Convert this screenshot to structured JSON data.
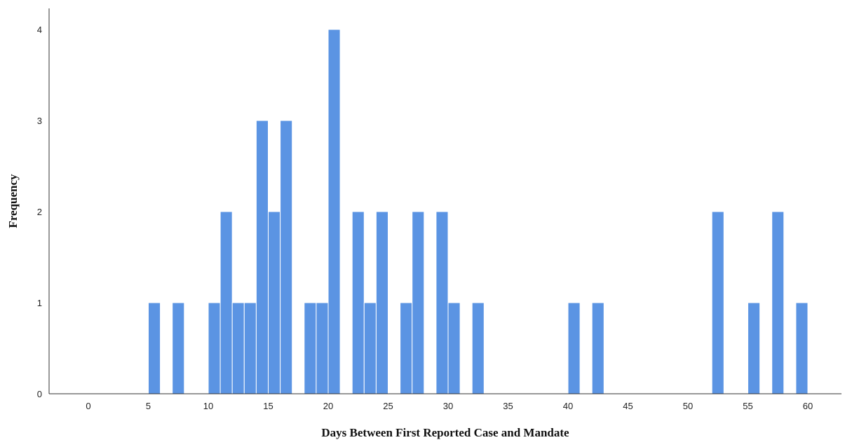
{
  "colors": {
    "bar": "#5b94e3",
    "axis": "#333333"
  },
  "chart_data": {
    "type": "bar",
    "xlabel": "Days Between First Reported Case and Mandate",
    "ylabel": "Frequency",
    "xlim": [
      -3,
      62.5
    ],
    "ylim": [
      0,
      4
    ],
    "x_ticks": [
      0,
      5,
      10,
      15,
      20,
      25,
      30,
      35,
      40,
      45,
      50,
      55,
      60
    ],
    "y_ticks": [
      0,
      1,
      2,
      3,
      4
    ],
    "bin_width": 1,
    "grid": false,
    "legend": "none",
    "bins": [
      {
        "x": 5.5,
        "count": 1
      },
      {
        "x": 7.5,
        "count": 1
      },
      {
        "x": 10.5,
        "count": 1
      },
      {
        "x": 11.5,
        "count": 2
      },
      {
        "x": 12.5,
        "count": 1
      },
      {
        "x": 13.5,
        "count": 1
      },
      {
        "x": 14.5,
        "count": 3
      },
      {
        "x": 15.5,
        "count": 2
      },
      {
        "x": 16.5,
        "count": 3
      },
      {
        "x": 18.5,
        "count": 1
      },
      {
        "x": 19.5,
        "count": 1
      },
      {
        "x": 20.5,
        "count": 4
      },
      {
        "x": 22.5,
        "count": 2
      },
      {
        "x": 23.5,
        "count": 1
      },
      {
        "x": 24.5,
        "count": 2
      },
      {
        "x": 26.5,
        "count": 1
      },
      {
        "x": 27.5,
        "count": 2
      },
      {
        "x": 29.5,
        "count": 2
      },
      {
        "x": 30.5,
        "count": 1
      },
      {
        "x": 32.5,
        "count": 1
      },
      {
        "x": 40.5,
        "count": 1
      },
      {
        "x": 42.5,
        "count": 1
      },
      {
        "x": 52.5,
        "count": 2
      },
      {
        "x": 55.5,
        "count": 1
      },
      {
        "x": 57.5,
        "count": 2
      },
      {
        "x": 59.5,
        "count": 1
      }
    ]
  }
}
